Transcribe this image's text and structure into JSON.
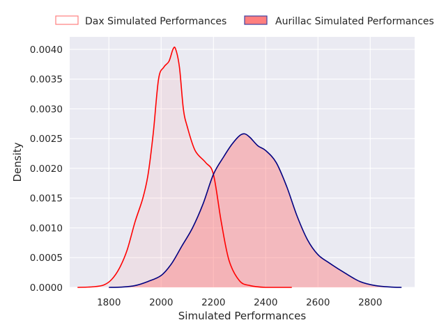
{
  "chart_data": {
    "type": "area",
    "title": "",
    "xlabel": "Simulated Performances",
    "ylabel": "Density",
    "xlim": [
      1650,
      2970
    ],
    "ylim": [
      0,
      0.00421
    ],
    "x_ticks": [
      1800,
      2000,
      2200,
      2400,
      2600,
      2800
    ],
    "y_ticks": [
      0,
      0.0005,
      0.001,
      0.0015,
      0.002,
      0.0025,
      0.003,
      0.0035,
      0.004
    ],
    "x_tick_labels": [
      "1800",
      "2000",
      "2200",
      "2400",
      "2600",
      "2800"
    ],
    "y_tick_labels": [
      "0.0000",
      "0.0005",
      "0.0010",
      "0.0015",
      "0.0020",
      "0.0025",
      "0.0030",
      "0.0035",
      "0.0040"
    ],
    "grid": true,
    "legend_position": "top",
    "background_color": "#eaeaf2",
    "series": [
      {
        "name": "Dax Simulated Performances",
        "line_color": "#ff0000",
        "fill_color": "#ff7f7f",
        "fill_opacity": 0.1,
        "legend_fill": "none",
        "legend_edge": "#ff7f7f",
        "points": [
          [
            1680,
            0
          ],
          [
            1740,
            1e-05
          ],
          [
            1780,
            4e-05
          ],
          [
            1810,
            0.00013
          ],
          [
            1840,
            0.00032
          ],
          [
            1870,
            0.00063
          ],
          [
            1900,
            0.0011
          ],
          [
            1930,
            0.0015
          ],
          [
            1950,
            0.0019
          ],
          [
            1970,
            0.0026
          ],
          [
            1990,
            0.0035
          ],
          [
            2010,
            0.0037
          ],
          [
            2030,
            0.0038
          ],
          [
            2045,
            0.004
          ],
          [
            2055,
            0.00401
          ],
          [
            2070,
            0.0037
          ],
          [
            2085,
            0.003
          ],
          [
            2100,
            0.0027
          ],
          [
            2130,
            0.0023
          ],
          [
            2170,
            0.0021
          ],
          [
            2200,
            0.0019
          ],
          [
            2230,
            0.0011
          ],
          [
            2260,
            0.00045
          ],
          [
            2300,
            0.00011
          ],
          [
            2340,
            3e-05
          ],
          [
            2400,
            0.0
          ],
          [
            2500,
            0.0
          ]
        ]
      },
      {
        "name": "Aurillac Simulated Performances",
        "line_color": "#000080",
        "fill_color": "#ff7f7f",
        "fill_opacity": 0.45,
        "legend_fill": "#ff7f7f",
        "legend_edge": "#4040a0",
        "points": [
          [
            1800,
            0
          ],
          [
            1850,
            5e-06
          ],
          [
            1900,
            3e-05
          ],
          [
            1950,
            0.0001
          ],
          [
            2000,
            0.0002
          ],
          [
            2040,
            0.0004
          ],
          [
            2080,
            0.0007
          ],
          [
            2120,
            0.001
          ],
          [
            2160,
            0.0014
          ],
          [
            2200,
            0.0019
          ],
          [
            2240,
            0.0022
          ],
          [
            2270,
            0.0024
          ],
          [
            2300,
            0.00255
          ],
          [
            2320,
            0.00258
          ],
          [
            2340,
            0.00252
          ],
          [
            2370,
            0.00238
          ],
          [
            2400,
            0.0023
          ],
          [
            2440,
            0.0021
          ],
          [
            2480,
            0.0017
          ],
          [
            2520,
            0.0012
          ],
          [
            2560,
            0.0008
          ],
          [
            2600,
            0.00055
          ],
          [
            2640,
            0.00042
          ],
          [
            2700,
            0.00025
          ],
          [
            2760,
            0.0001
          ],
          [
            2820,
            3e-05
          ],
          [
            2880,
            5e-06
          ],
          [
            2920,
            0
          ]
        ]
      }
    ]
  }
}
